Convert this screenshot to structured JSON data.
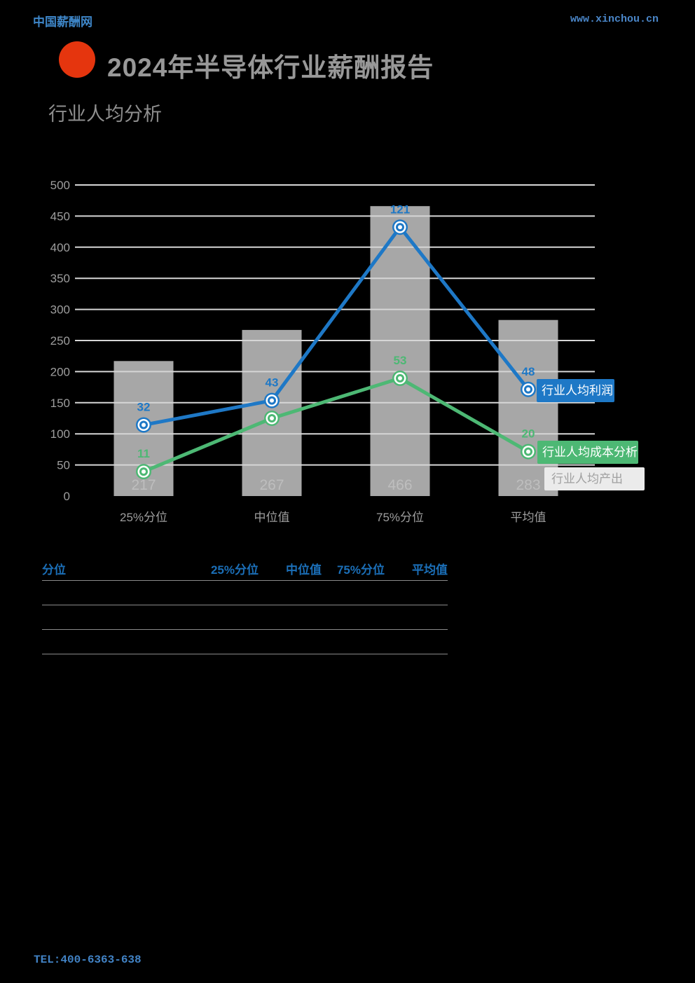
{
  "page": {
    "site_name": "中国薪酬网",
    "site_url": "www.xinchou.cn",
    "title": "2024年半导体行业薪酬报告",
    "subtitle": "行业人均分析",
    "footer_tel": "TEL:400-6363-638"
  },
  "colors": {
    "background": "#000000",
    "logo_red": "#E5350E",
    "profit_blue": "#1E78C6",
    "cost_green": "#4DB874",
    "bar_gray": "#A7A7A7",
    "bar_value_label_gray": "#BEBEBE",
    "grid_line": "#D6D6D6",
    "axis_text_gray": "#9E9E9E",
    "legend_output_bg": "#EBEBEB",
    "legend_output_text": "#A0A0A0",
    "table_header_blue": "#1B6FB8"
  },
  "chart_data": {
    "type": "bar",
    "subtype": "bar-line-combo",
    "categories": [
      "25%分位",
      "中位值",
      "75%分位",
      "平均值"
    ],
    "series": [
      {
        "name": "行业人均产出",
        "type": "bar",
        "axis": "left",
        "color": "#A7A7A7",
        "values": [
          217,
          267,
          466,
          283
        ]
      },
      {
        "name": "行业人均利润",
        "type": "line",
        "axis": "right",
        "color": "#1E78C6",
        "values": [
          32,
          43,
          121,
          48
        ]
      },
      {
        "name": "行业人均成本分析",
        "type": "line",
        "axis": "right",
        "color": "#4DB874",
        "values": [
          11,
          35,
          53,
          20
        ]
      }
    ],
    "title": "行业人均分析",
    "xlabel": "",
    "ylabel": "",
    "left_axis": {
      "min": 0,
      "max": 500,
      "step": 50,
      "tick_labels": [
        "0",
        "50",
        "100",
        "150",
        "200",
        "250",
        "300",
        "350",
        "400",
        "450",
        "500"
      ]
    },
    "right_axis": {
      "min": 0,
      "max": 140,
      "visible": false
    },
    "grid": true,
    "legend_position": "right-overlay",
    "data_labels": true
  },
  "table": {
    "headers": [
      "分位",
      "25%分位",
      "中位值",
      "75%分位",
      "平均值"
    ],
    "rows": [
      [
        "",
        "",
        "",
        "",
        ""
      ],
      [
        "",
        "",
        "",
        "",
        ""
      ],
      [
        "",
        "",
        "",
        "",
        ""
      ]
    ]
  }
}
